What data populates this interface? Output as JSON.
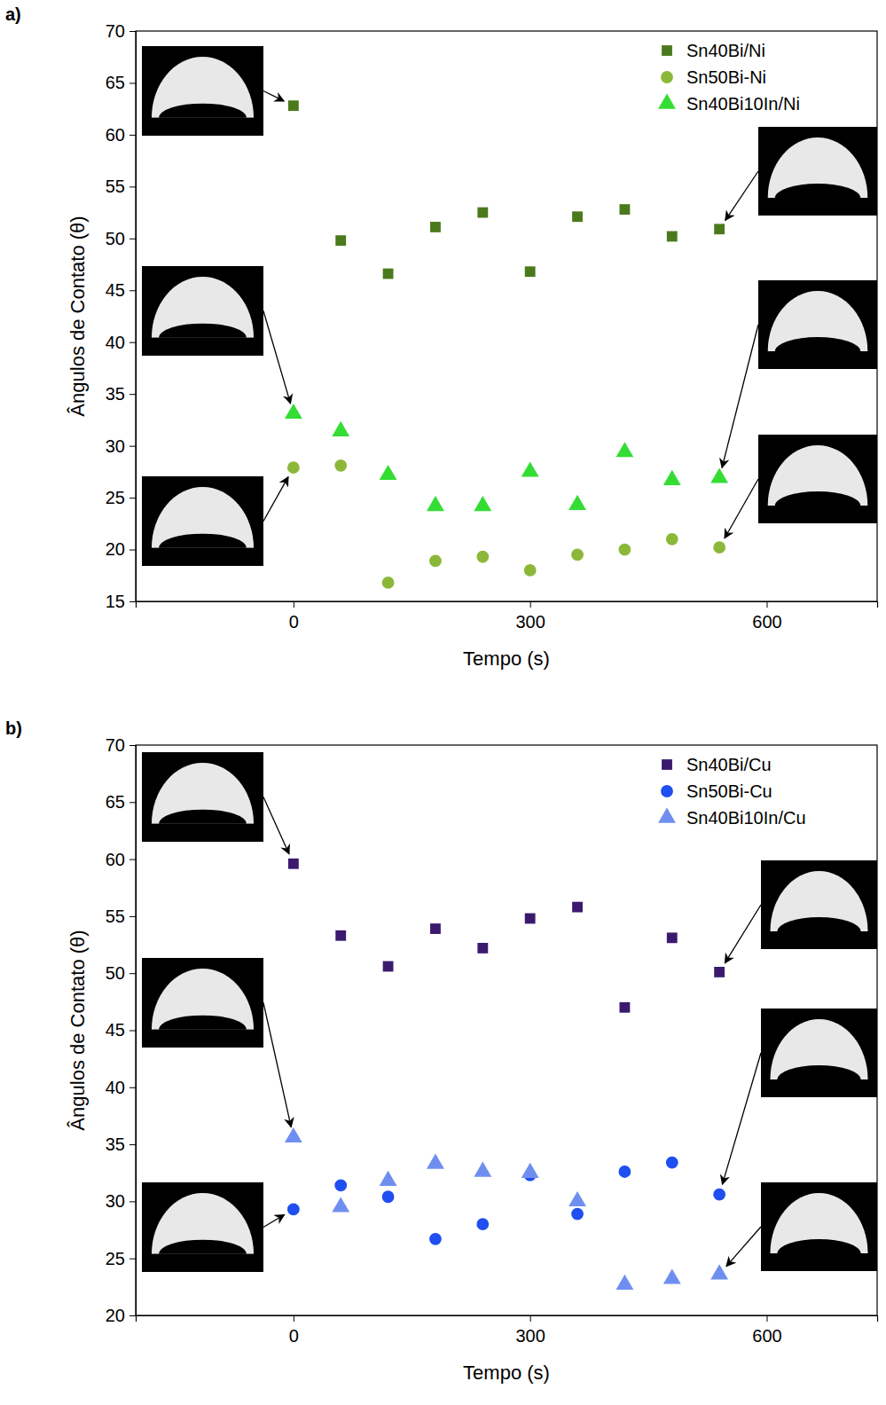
{
  "chart_data": [
    {
      "type": "scatter",
      "panel_label": "a)",
      "x_label": "Tempo (s)",
      "y_label": "Ângulos de Contato (θ)",
      "x": [
        0,
        60,
        120,
        180,
        240,
        300,
        360,
        420,
        480,
        540
      ],
      "series": [
        {
          "name": "Sn40Bi/Ni",
          "color": "#4b7a1c",
          "marker": "square",
          "values": [
            62.8,
            49.8,
            46.6,
            51.1,
            52.5,
            46.8,
            52.1,
            52.8,
            50.2,
            50.9
          ]
        },
        {
          "name": "Sn50Bi-Ni",
          "color": "#8cb83a",
          "marker": "circle",
          "values": [
            27.9,
            28.1,
            16.8,
            18.9,
            19.3,
            18.0,
            19.5,
            20.0,
            21.0,
            20.2
          ]
        },
        {
          "name": "Sn40Bi10In/Ni",
          "color": "#33dd33",
          "marker": "triangle",
          "values": [
            33.1,
            31.4,
            27.2,
            24.2,
            24.2,
            27.5,
            24.3,
            29.4,
            26.7,
            26.9
          ]
        }
      ],
      "xlim": [
        -200,
        740
      ],
      "xticks": [
        0,
        300,
        600
      ],
      "ylim": [
        15,
        70
      ],
      "yticks": [
        15,
        20,
        25,
        30,
        35,
        40,
        45,
        50,
        55,
        60,
        65,
        70
      ],
      "legend": "top-right",
      "grid": false
    },
    {
      "type": "scatter",
      "panel_label": "b)",
      "x_label": "Tempo (s)",
      "y_label": "Ângulos de Contato (θ)",
      "x": [
        0,
        60,
        120,
        180,
        240,
        300,
        360,
        420,
        480,
        540
      ],
      "series": [
        {
          "name": "Sn40Bi/Cu",
          "color": "#3b1a6e",
          "marker": "square",
          "values": [
            59.6,
            53.3,
            50.6,
            53.9,
            52.2,
            54.8,
            55.8,
            47.0,
            53.1,
            50.1
          ]
        },
        {
          "name": "Sn50Bi-Cu",
          "color": "#1f4ff0",
          "marker": "circle",
          "values": [
            29.3,
            31.4,
            30.4,
            26.7,
            28.0,
            32.3,
            28.9,
            32.6,
            33.4,
            30.6
          ]
        },
        {
          "name": "Sn40Bi10In/Cu",
          "color": "#6f8ff0",
          "marker": "triangle",
          "values": [
            35.6,
            29.5,
            31.8,
            33.3,
            32.6,
            32.5,
            30.0,
            22.7,
            23.2,
            23.6
          ]
        }
      ],
      "xlim": [
        -200,
        740
      ],
      "xticks": [
        0,
        300,
        600
      ],
      "ylim": [
        20,
        70
      ],
      "yticks": [
        20,
        25,
        30,
        35,
        40,
        45,
        50,
        55,
        60,
        65,
        70
      ],
      "legend": "top-right",
      "grid": false
    }
  ]
}
